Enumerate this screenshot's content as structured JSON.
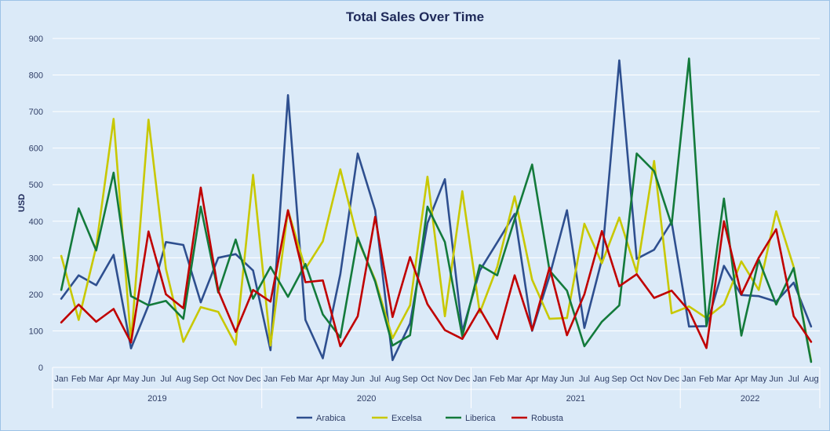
{
  "chart_data": {
    "type": "line",
    "title": "Total Sales Over Time",
    "ylabel": "USD",
    "xlabel": "",
    "ylim": [
      0,
      900
    ],
    "yticks": [
      0,
      100,
      200,
      300,
      400,
      500,
      600,
      700,
      800,
      900
    ],
    "grid": true,
    "legend_position": "bottom",
    "categories": [
      "Jan",
      "Feb",
      "Mar",
      "Apr",
      "May",
      "Jun",
      "Jul",
      "Aug",
      "Sep",
      "Oct",
      "Nov",
      "Dec",
      "Jan",
      "Feb",
      "Mar",
      "Apr",
      "May",
      "Jun",
      "Jul",
      "Aug",
      "Sep",
      "Oct",
      "Nov",
      "Dec",
      "Jan",
      "Feb",
      "Mar",
      "Apr",
      "May",
      "Jun",
      "Jul",
      "Aug",
      "Sep",
      "Oct",
      "Nov",
      "Dec",
      "Jan",
      "Feb",
      "Mar",
      "Apr",
      "May",
      "Jun",
      "Jul",
      "Aug"
    ],
    "year_groups": [
      {
        "label": "2019",
        "count": 12
      },
      {
        "label": "2020",
        "count": 12
      },
      {
        "label": "2021",
        "count": 12
      },
      {
        "label": "2022",
        "count": 8
      }
    ],
    "series": [
      {
        "name": "Arabica",
        "color": "#2e4f8f",
        "values": [
          188,
          252,
          225,
          308,
          52,
          170,
          343,
          335,
          178,
          300,
          310,
          265,
          47,
          745,
          130,
          25,
          255,
          585,
          430,
          20,
          120,
          395,
          515,
          98,
          265,
          342,
          420,
          100,
          250,
          430,
          108,
          295,
          840,
          297,
          322,
          398,
          112,
          113,
          278,
          198,
          195,
          180,
          232,
          112
        ]
      },
      {
        "name": "Excelsa",
        "color": "#c8c800",
        "values": [
          305,
          130,
          330,
          680,
          70,
          678,
          270,
          70,
          165,
          152,
          62,
          527,
          60,
          430,
          270,
          345,
          542,
          350,
          240,
          80,
          170,
          522,
          140,
          482,
          150,
          275,
          468,
          240,
          133,
          135,
          393,
          285,
          410,
          260,
          565,
          148,
          167,
          135,
          173,
          290,
          212,
          427,
          275,
          18
        ]
      },
      {
        "name": "Liberica",
        "color": "#137a3b",
        "values": [
          212,
          435,
          320,
          533,
          195,
          170,
          182,
          133,
          440,
          205,
          350,
          188,
          275,
          193,
          283,
          145,
          82,
          355,
          235,
          60,
          88,
          440,
          343,
          85,
          280,
          252,
          405,
          555,
          265,
          210,
          58,
          125,
          170,
          585,
          537,
          390,
          845,
          113,
          462,
          87,
          295,
          172,
          272,
          15
        ]
      },
      {
        "name": "Robusta",
        "color": "#c00000",
        "values": [
          123,
          172,
          125,
          160,
          68,
          372,
          200,
          162,
          492,
          210,
          97,
          212,
          180,
          430,
          233,
          238,
          58,
          140,
          412,
          138,
          302,
          173,
          102,
          78,
          160,
          78,
          252,
          102,
          273,
          88,
          200,
          373,
          222,
          255,
          190,
          210,
          155,
          53,
          400,
          200,
          300,
          378,
          140,
          70
        ]
      }
    ]
  }
}
